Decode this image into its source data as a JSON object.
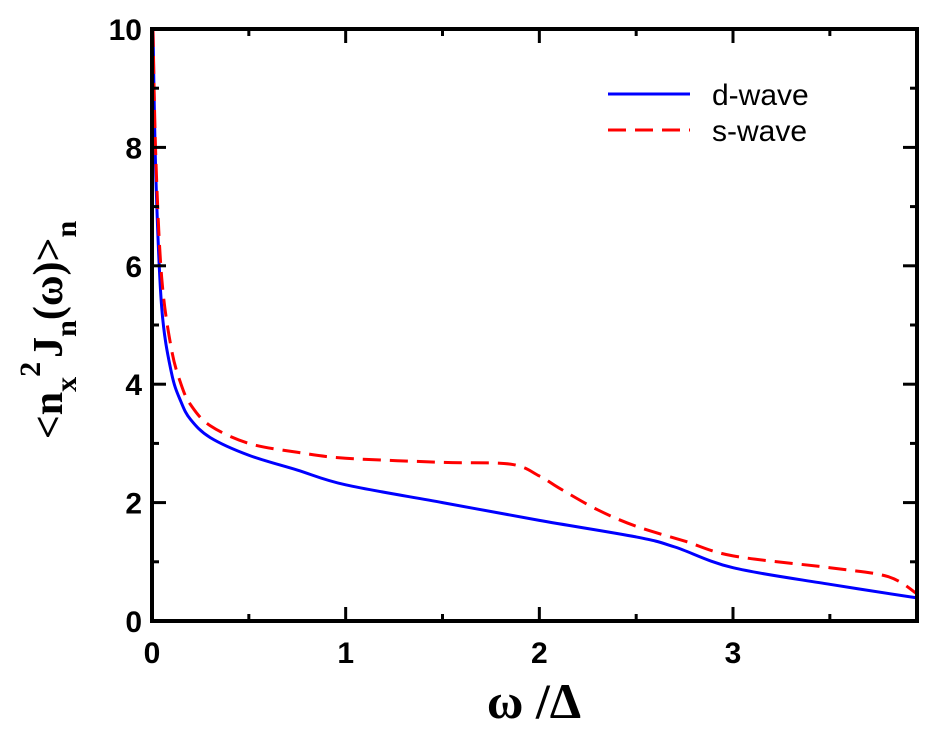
{
  "chart_data": {
    "type": "line",
    "title": "",
    "xlabel": "ω /Δ",
    "ylabel": {
      "main": "<n",
      "sub_x": "x",
      "sup": "2",
      "mid": "J",
      "sub_n": "n",
      "tail": "(ω)>",
      "sub_end": "n"
    },
    "xlim": [
      0,
      3.95
    ],
    "ylim": [
      0,
      10
    ],
    "xticks": [
      0,
      1,
      2,
      3
    ],
    "xtick_labels": [
      "0",
      "1",
      "2",
      "3"
    ],
    "yticks": [
      0,
      2,
      4,
      6,
      8,
      10
    ],
    "ytick_labels": [
      "0",
      "2",
      "4",
      "6",
      "8",
      "10"
    ],
    "grid": false,
    "legend_position": "top-right",
    "series": [
      {
        "name": "d-wave",
        "color": "#0000ff",
        "style": "solid",
        "x": [
          0.005,
          0.02,
          0.05,
          0.1,
          0.15,
          0.2,
          0.3,
          0.5,
          0.75,
          1,
          1.5,
          2,
          2.5,
          2.7,
          3,
          3.5,
          3.95
        ],
        "y": [
          10,
          7.5,
          5.3,
          4.2,
          3.7,
          3.4,
          3.1,
          2.8,
          2.55,
          2.3,
          2.0,
          1.7,
          1.42,
          1.25,
          0.9,
          0.62,
          0.39
        ]
      },
      {
        "name": "s-wave",
        "color": "#ff0000",
        "style": "dashed",
        "x": [
          0.005,
          0.02,
          0.05,
          0.1,
          0.15,
          0.2,
          0.3,
          0.5,
          0.75,
          1,
          1.5,
          1.85,
          2.0,
          2.1,
          2.3,
          2.5,
          2.75,
          3,
          3.5,
          3.8,
          3.95
        ],
        "y": [
          10,
          7.8,
          5.8,
          4.6,
          4.0,
          3.65,
          3.3,
          3.0,
          2.85,
          2.75,
          2.68,
          2.65,
          2.45,
          2.25,
          1.88,
          1.6,
          1.35,
          1.1,
          0.9,
          0.75,
          0.46
        ]
      }
    ]
  }
}
